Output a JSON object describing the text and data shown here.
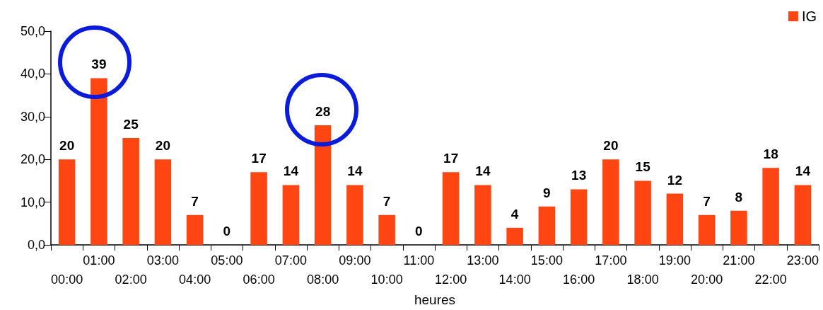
{
  "chart_data": {
    "type": "bar",
    "xlabel": "heures",
    "categories": [
      "00:00",
      "01:00",
      "02:00",
      "03:00",
      "04:00",
      "05:00",
      "06:00",
      "07:00",
      "08:00",
      "09:00",
      "10:00",
      "11:00",
      "12:00",
      "13:00",
      "14:00",
      "15:00",
      "16:00",
      "17:00",
      "18:00",
      "19:00",
      "20:00",
      "21:00",
      "22:00",
      "23:00"
    ],
    "series": [
      {
        "name": "IG",
        "color": "#ff4512",
        "values": [
          20,
          39,
          25,
          20,
          7,
          0,
          17,
          14,
          28,
          14,
          7,
          0,
          17,
          14,
          4,
          9,
          13,
          20,
          15,
          12,
          7,
          8,
          18,
          14
        ]
      }
    ],
    "ylim": [
      0,
      50
    ],
    "yticks": [
      {
        "value": 0,
        "label": "0,0"
      },
      {
        "value": 10,
        "label": "10,0"
      },
      {
        "value": 20,
        "label": "20,0"
      },
      {
        "value": 30,
        "label": "30,0"
      },
      {
        "value": 40,
        "label": "40,0"
      },
      {
        "value": 50,
        "label": "50,0"
      }
    ],
    "data_labels": true,
    "grid": false,
    "legend": "top right"
  }
}
